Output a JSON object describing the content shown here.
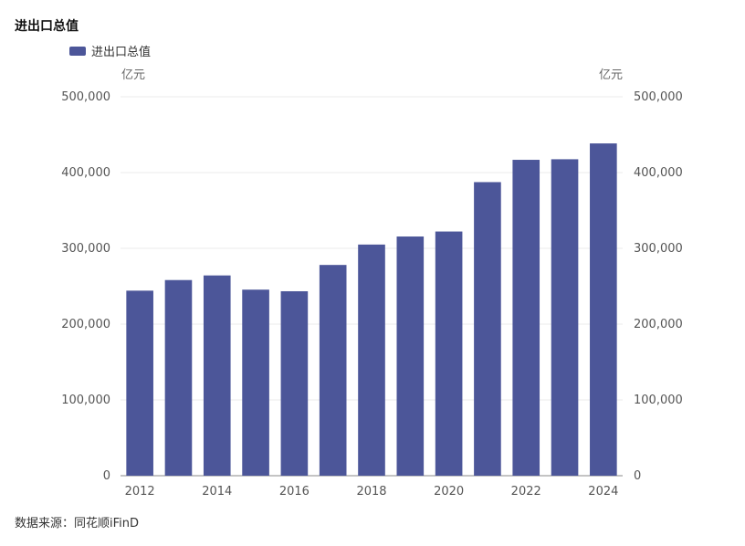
{
  "chart_data": {
    "type": "bar",
    "title": "进出口总值",
    "source": "数据来源：同花顺iFinD",
    "legend": {
      "label": "进出口总值",
      "placement": "top-left"
    },
    "y_unit_left": "亿元",
    "y_unit_right": "亿元",
    "categories": [
      "2012",
      "2013",
      "2014",
      "2015",
      "2016",
      "2017",
      "2018",
      "2019",
      "2020",
      "2021",
      "2022",
      "2023",
      "2024"
    ],
    "x_tick_labels": [
      "2012",
      "2014",
      "2016",
      "2018",
      "2020",
      "2022",
      "2024"
    ],
    "series": [
      {
        "name": "进出口总值",
        "values": [
          244160,
          258169,
          264242,
          245503,
          243386,
          278099,
          305008,
          315627,
          322215,
          387392,
          416826,
          417568,
          438468
        ]
      }
    ],
    "ylim": [
      0,
      500000
    ],
    "y_ticks": [
      "0",
      "100,000",
      "200,000",
      "300,000",
      "400,000",
      "500,000"
    ],
    "grid": true,
    "bar_color": "#4c5699"
  }
}
